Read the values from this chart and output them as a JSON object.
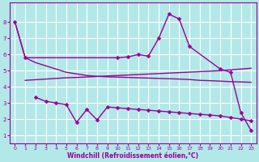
{
  "xlabel": "Windchill (Refroidissement éolien,°C)",
  "xlim": [
    -0.5,
    23.5
  ],
  "ylim": [
    0.5,
    9.2
  ],
  "yticks": [
    1,
    2,
    3,
    4,
    5,
    6,
    7,
    8
  ],
  "xticks": [
    0,
    1,
    2,
    3,
    4,
    5,
    6,
    7,
    8,
    9,
    10,
    11,
    12,
    13,
    14,
    15,
    16,
    17,
    18,
    19,
    20,
    21,
    22,
    23
  ],
  "bg_color": "#b3e8e8",
  "grid_color": "#ffffff",
  "line_color": "#990099",
  "curve_hump_x": [
    0,
    1,
    10,
    11,
    12,
    13,
    14,
    15,
    16,
    17,
    20,
    21,
    22,
    23
  ],
  "curve_hump_y": [
    8.0,
    5.8,
    5.8,
    5.85,
    6.0,
    5.9,
    7.0,
    8.5,
    8.2,
    6.5,
    5.1,
    4.9,
    2.4,
    1.3
  ],
  "curve_diag_x": [
    0,
    1,
    2,
    3,
    4,
    5,
    6,
    7,
    8,
    9,
    10,
    11,
    12,
    13,
    14,
    15,
    16,
    17,
    18,
    19,
    20,
    21,
    22,
    23
  ],
  "curve_diag_y": [
    8.0,
    5.8,
    5.5,
    5.3,
    5.1,
    4.9,
    4.8,
    4.7,
    4.65,
    4.62,
    4.6,
    4.58,
    4.56,
    4.54,
    4.52,
    4.5,
    4.48,
    4.45,
    4.4,
    4.38,
    4.35,
    4.32,
    4.3,
    4.28
  ],
  "curve_rise_x": [
    1,
    2,
    3,
    4,
    5,
    6,
    7,
    8,
    9,
    10,
    11,
    12,
    13,
    14,
    15,
    16,
    17,
    18,
    19,
    20,
    21,
    22,
    23
  ],
  "curve_rise_y": [
    4.4,
    4.44,
    4.48,
    4.52,
    4.56,
    4.58,
    4.61,
    4.64,
    4.67,
    4.7,
    4.73,
    4.76,
    4.79,
    4.82,
    4.85,
    4.88,
    4.91,
    4.94,
    4.97,
    5.0,
    5.05,
    5.1,
    5.15
  ],
  "curve_zigzag_x": [
    2,
    3,
    4,
    5,
    6,
    7,
    8,
    9,
    10,
    11,
    12,
    13,
    14,
    15,
    16,
    17,
    18,
    19,
    20,
    21,
    22,
    23
  ],
  "curve_zigzag_y": [
    3.35,
    3.1,
    3.0,
    2.9,
    1.8,
    2.6,
    1.95,
    2.75,
    2.7,
    2.65,
    2.6,
    2.55,
    2.5,
    2.45,
    2.4,
    2.35,
    2.3,
    2.25,
    2.2,
    2.1,
    2.0,
    1.9
  ],
  "marker": "D",
  "markersize": 2.5,
  "linewidth": 1.0
}
